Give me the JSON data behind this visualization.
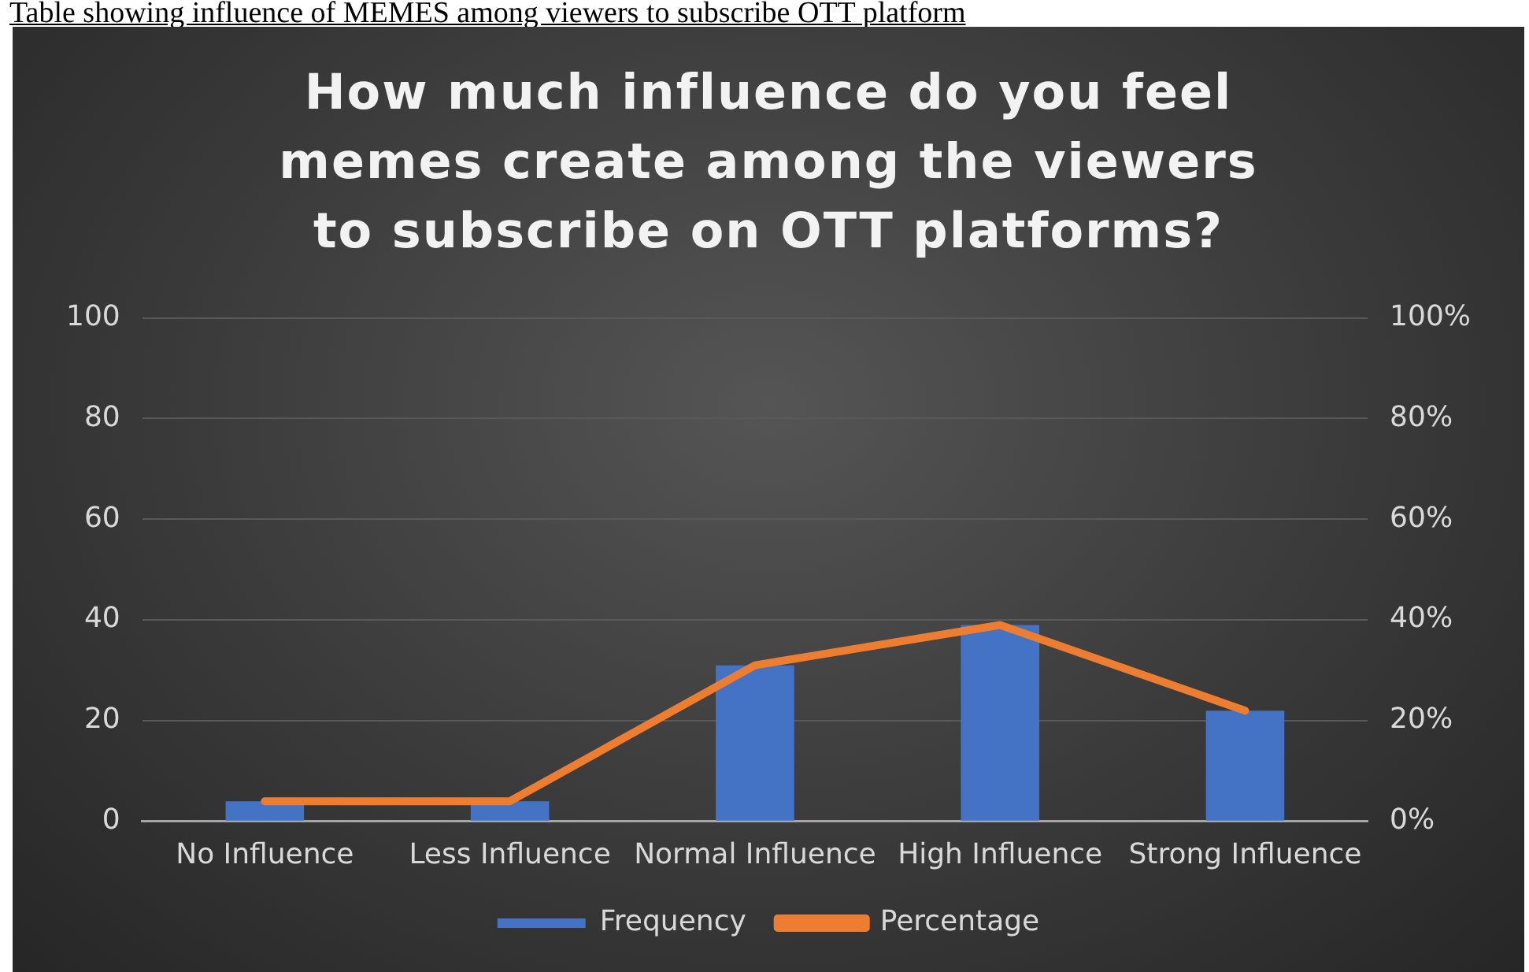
{
  "chart_data": {
    "type": "bar",
    "title": "How much influence do you feel memes create among the viewers to subscribe on OTT platforms?",
    "annotations": [
      "Table showing influence of MEMES among viewers to subscribe OTT platform"
    ],
    "categories": [
      "No Influence",
      "Less Influence",
      "Normal Influence",
      "High Influence",
      "Strong Influence"
    ],
    "series": [
      {
        "name": "Frequency",
        "color": "#4472c4",
        "values": [
          4,
          4,
          31,
          39,
          22
        ]
      },
      {
        "name": "Percentage",
        "type": "line",
        "axis": "y2",
        "color": "#ed7d31",
        "values": [
          4,
          4,
          31,
          39,
          22
        ]
      }
    ],
    "ylim": [
      0,
      100
    ],
    "yticks": [
      0,
      20,
      40,
      60,
      80,
      100
    ],
    "y2lim": [
      0,
      100
    ],
    "y2ticks": [
      {
        "value": 0,
        "label": "0%"
      },
      {
        "value": 20,
        "label": "20%"
      },
      {
        "value": 40,
        "label": "40%"
      },
      {
        "value": 60,
        "label": "60%"
      },
      {
        "value": 80,
        "label": "80%"
      },
      {
        "value": 100,
        "label": "100%"
      }
    ],
    "grid": "y",
    "legend": "bottom",
    "marker": "none",
    "line_style": "solid"
  }
}
